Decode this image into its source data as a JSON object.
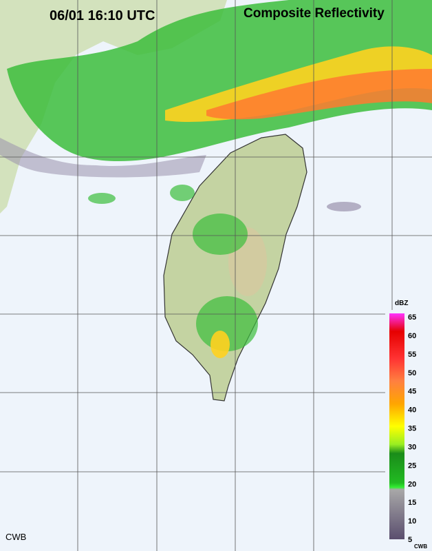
{
  "header": {
    "time": "06/01 16:10 UTC",
    "title": "Composite Reflectivity"
  },
  "legend": {
    "unit": "dBZ",
    "ticks": [
      65,
      60,
      55,
      50,
      45,
      40,
      35,
      30,
      25,
      20,
      15,
      10,
      5
    ],
    "source": "CWB"
  },
  "footer": {
    "source": "CWB"
  }
}
